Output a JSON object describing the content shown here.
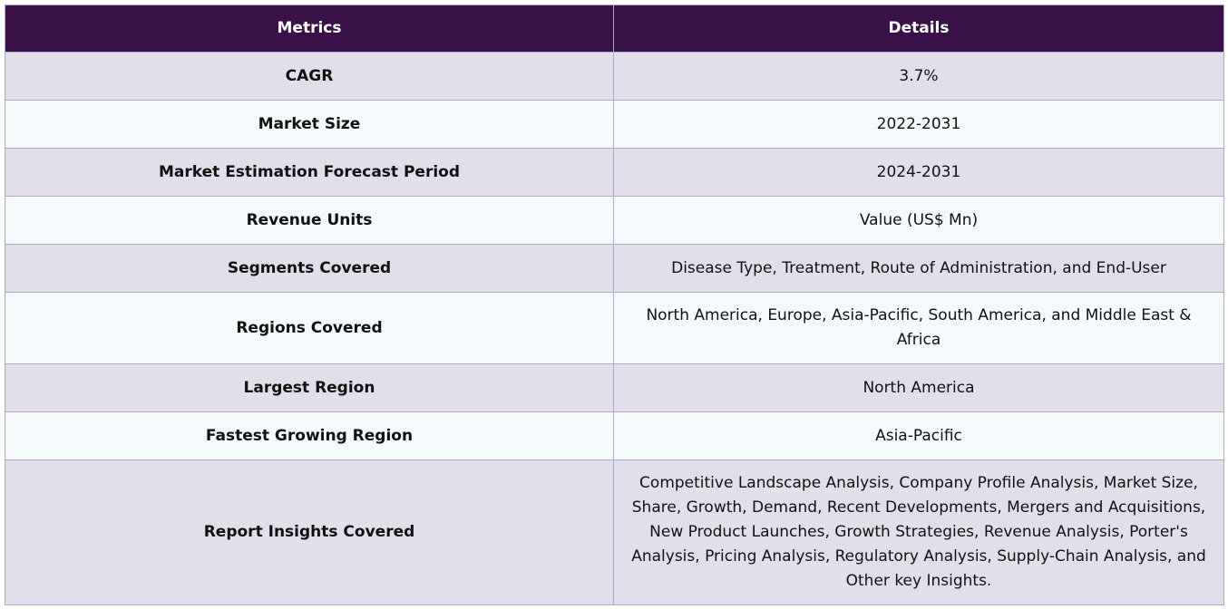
{
  "table": {
    "headers": {
      "metric": "Metrics",
      "details": "Details"
    },
    "rows": [
      {
        "metric": "CAGR",
        "details": "3.7%"
      },
      {
        "metric": "Market Size",
        "details": "2022-2031"
      },
      {
        "metric": "Market Estimation Forecast Period",
        "details": "2024-2031"
      },
      {
        "metric": "Revenue Units",
        "details": "Value (US$ Mn)"
      },
      {
        "metric": "Segments Covered",
        "details": "Disease Type, Treatment, Route of Administration, and End-User"
      },
      {
        "metric": "Regions Covered",
        "details": "North America, Europe, Asia-Pacific, South America, and Middle East & Africa"
      },
      {
        "metric": "Largest Region",
        "details": "North America"
      },
      {
        "metric": "Fastest Growing Region",
        "details": "Asia-Pacific"
      },
      {
        "metric": "Report Insights Covered",
        "details": "Competitive Landscape Analysis, Company Profile Analysis, Market Size, Share, Growth, Demand, Recent Developments, Mergers and Acquisitions, New Product Launches, Growth Strategies, Revenue Analysis, Porter's Analysis, Pricing Analysis, Regulatory Analysis, Supply-Chain Analysis, and Other key Insights."
      }
    ]
  },
  "colors": {
    "header_bg": "#3a1048",
    "header_text": "#ffffff",
    "row_odd_bg": "#e2dfea",
    "row_even_bg": "#f4f9fb",
    "border": "#b0aac8"
  }
}
